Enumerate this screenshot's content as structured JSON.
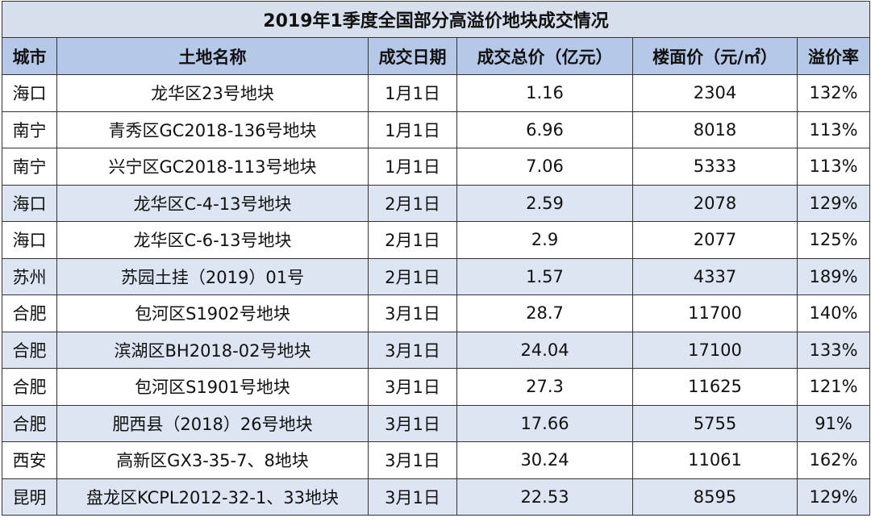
{
  "table": {
    "title": "2019年1季度全国部分高溢价地块成交情况",
    "headers": [
      "城市",
      "土地名称",
      "成交日期",
      "成交总价（亿元）",
      "楼面价（元/㎡）",
      "溢价率"
    ],
    "rows": [
      [
        "海口",
        "龙华区23号地块",
        "1月1日",
        "1.16",
        "2304",
        "132%"
      ],
      [
        "南宁",
        "青秀区GC2018-136号地块",
        "1月1日",
        "6.96",
        "8018",
        "113%"
      ],
      [
        "南宁",
        "兴宁区GC2018-113号地块",
        "1月1日",
        "7.06",
        "5333",
        "113%"
      ],
      [
        "海口",
        "龙华区C-4-13号地块",
        "2月1日",
        "2.59",
        "2078",
        "129%"
      ],
      [
        "海口",
        "龙华区C-6-13号地块",
        "2月1日",
        "2.9",
        "2077",
        "125%"
      ],
      [
        "苏州",
        "苏园土挂（2019）01号",
        "2月1日",
        "1.57",
        "4337",
        "189%"
      ],
      [
        "合肥",
        "包河区S1902号地块",
        "3月1日",
        "28.7",
        "11700",
        "140%"
      ],
      [
        "合肥",
        "滨湖区BH2018-02号地块",
        "3月1日",
        "24.04",
        "17100",
        "133%"
      ],
      [
        "合肥",
        "包河区S1901号地块",
        "3月1日",
        "27.3",
        "11625",
        "121%"
      ],
      [
        "合肥",
        "肥西县（2018）26号地块",
        "3月1日",
        "17.66",
        "5755",
        "91%"
      ],
      [
        "西安",
        "高新区GX3-35-7、8地块",
        "3月1日",
        "30.24",
        "11061",
        "162%"
      ],
      [
        "昆明",
        "盘龙区KCPL2012-32-1、33地块",
        "3月1日",
        "22.53",
        "8595",
        "129%"
      ]
    ]
  }
}
